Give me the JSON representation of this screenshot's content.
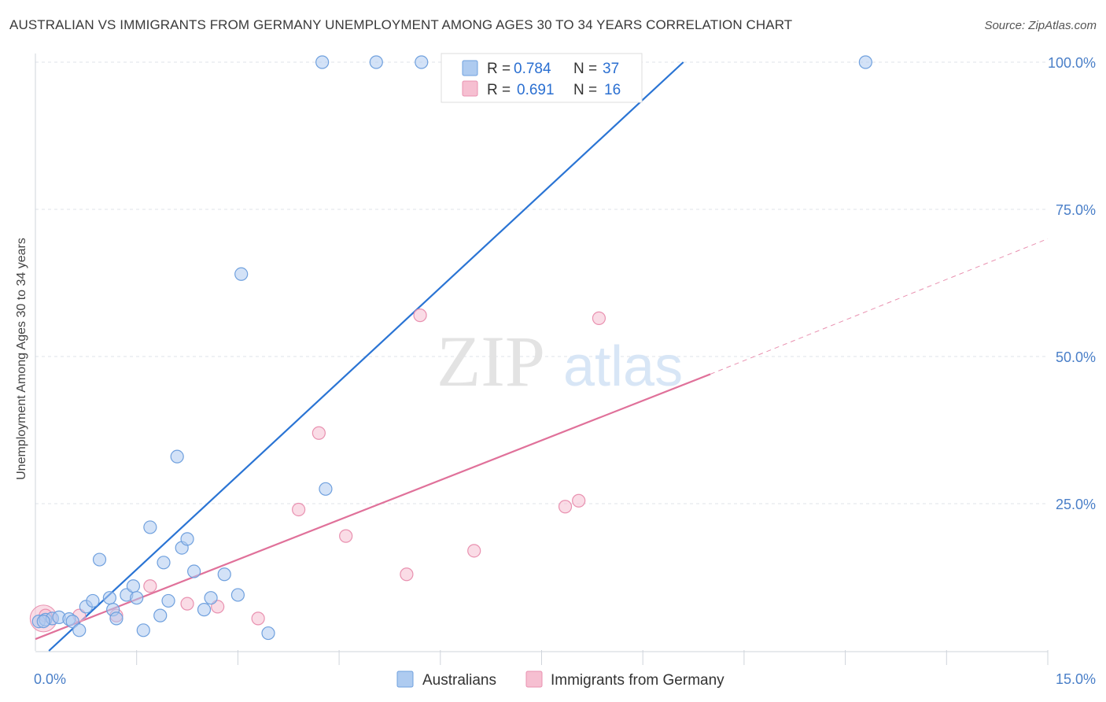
{
  "title": "AUSTRALIAN VS IMMIGRANTS FROM GERMANY UNEMPLOYMENT AMONG AGES 30 TO 34 YEARS CORRELATION CHART",
  "source": "Source: ZipAtlas.com",
  "watermark": {
    "zip": "ZIP",
    "atlas": "atlas"
  },
  "colors": {
    "blue_fill": "#aecbf0",
    "blue_stroke": "#6fa0de",
    "blue_line": "#2a74d4",
    "pink_fill": "#f6bfd1",
    "pink_stroke": "#e991b0",
    "pink_line": "#e0719a",
    "tick_label": "#4a7fc8",
    "grid": "#dfe3ea"
  },
  "legend": {
    "rows": [
      {
        "r_label": "R =",
        "r_value": "0.784",
        "n_label": "N =",
        "n_value": "37"
      },
      {
        "r_label": "R =",
        "r_value": "0.691",
        "n_label": "N =",
        "n_value": "16"
      }
    ]
  },
  "chart_data": {
    "type": "scatter",
    "title": "AUSTRALIAN VS IMMIGRANTS FROM GERMANY UNEMPLOYMENT AMONG AGES 30 TO 34 YEARS CORRELATION CHART",
    "xlabel": "",
    "ylabel": "Unemployment Among Ages 30 to 34 years",
    "xlim": [
      0,
      15
    ],
    "ylim": [
      0,
      100
    ],
    "x_tick_labels": [
      "0.0%",
      "15.0%"
    ],
    "y_tick_labels": [
      "100.0%",
      "75.0%",
      "50.0%",
      "25.0%"
    ],
    "y_ticks": [
      100,
      75,
      50,
      25
    ],
    "series": [
      {
        "name": "Australians",
        "r": 0.784,
        "n": 37,
        "points": [
          [
            0.05,
            5.0
          ],
          [
            0.15,
            5.3
          ],
          [
            0.25,
            5.5
          ],
          [
            0.35,
            5.7
          ],
          [
            0.5,
            5.4
          ],
          [
            0.55,
            5.0
          ],
          [
            0.65,
            3.5
          ],
          [
            0.75,
            7.5
          ],
          [
            0.85,
            8.5
          ],
          [
            0.95,
            15.5
          ],
          [
            1.1,
            9.0
          ],
          [
            1.15,
            7.0
          ],
          [
            1.2,
            5.5
          ],
          [
            1.35,
            9.5
          ],
          [
            1.45,
            11.0
          ],
          [
            1.5,
            9.0
          ],
          [
            1.6,
            3.5
          ],
          [
            1.7,
            21.0
          ],
          [
            1.85,
            6.0
          ],
          [
            1.9,
            15.0
          ],
          [
            1.97,
            8.5
          ],
          [
            2.1,
            33.0
          ],
          [
            2.17,
            17.5
          ],
          [
            2.25,
            19.0
          ],
          [
            2.35,
            13.5
          ],
          [
            2.5,
            7.0
          ],
          [
            2.6,
            9.0
          ],
          [
            2.8,
            13.0
          ],
          [
            3.0,
            9.5
          ],
          [
            3.05,
            64.0
          ],
          [
            3.45,
            3.0
          ],
          [
            4.3,
            27.5
          ],
          [
            4.25,
            100.0
          ],
          [
            5.05,
            100.0
          ],
          [
            5.72,
            100.0
          ],
          [
            12.3,
            100.0
          ],
          [
            0.12,
            5.0
          ]
        ],
        "trend": {
          "x0": 0.2,
          "y0": 0.0,
          "x1": 9.6,
          "y1": 100.0
        }
      },
      {
        "name": "Immigrants from Germany",
        "r": 0.691,
        "n": 16,
        "points": [
          [
            0.15,
            6.0
          ],
          [
            0.65,
            6.0
          ],
          [
            1.2,
            6.0
          ],
          [
            1.7,
            11.0
          ],
          [
            2.25,
            8.0
          ],
          [
            2.7,
            7.5
          ],
          [
            3.3,
            5.5
          ],
          [
            3.9,
            24.0
          ],
          [
            4.2,
            37.0
          ],
          [
            4.6,
            19.5
          ],
          [
            5.5,
            13.0
          ],
          [
            5.7,
            57.0
          ],
          [
            6.5,
            17.0
          ],
          [
            7.85,
            24.5
          ],
          [
            8.05,
            25.5
          ],
          [
            8.35,
            56.5
          ]
        ],
        "trend": {
          "x0": 0.0,
          "y0": 2.0,
          "x1": 10.0,
          "y1": 47.0
        },
        "trend_extension": {
          "x0": 10.0,
          "y0": 47.0,
          "x1": 15.0,
          "y1": 70.0
        }
      }
    ]
  }
}
